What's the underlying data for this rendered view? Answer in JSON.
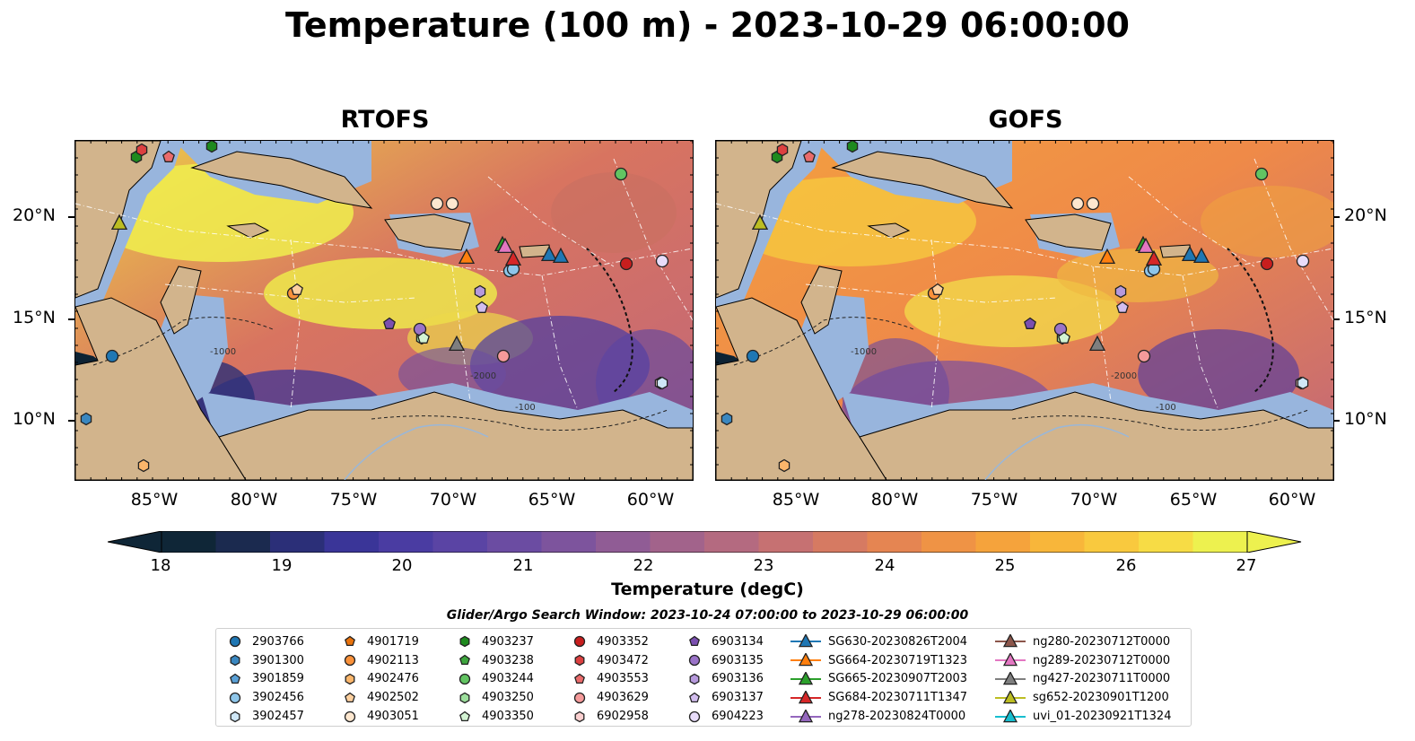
{
  "title": "Temperature (100 m) - 2023-10-29 06:00:00",
  "panels": [
    {
      "title": "RTOFS"
    },
    {
      "title": "GOFS"
    }
  ],
  "lat_labels": [
    "20°N",
    "15°N",
    "10°N"
  ],
  "lon_labels": [
    "85°W",
    "80°W",
    "75°W",
    "70°W",
    "65°W",
    "60°W"
  ],
  "colorbar": {
    "ticks": [
      "18",
      "19",
      "20",
      "21",
      "22",
      "23",
      "24",
      "25",
      "26",
      "27"
    ],
    "label": "Temperature (degC)",
    "colors": [
      "#0f2637",
      "#1b2a4f",
      "#2b2f78",
      "#3a3598",
      "#4a3ca2",
      "#5a44a4",
      "#6b4ca2",
      "#7d549d",
      "#905c95",
      "#a2638b",
      "#b46a80",
      "#c67172",
      "#d67a62",
      "#e58552",
      "#ef9345",
      "#f5a33c",
      "#f8b63a",
      "#f9c93e",
      "#f7dc45",
      "#edf14f"
    ]
  },
  "search_window": "Glider/Argo Search Window: 2023-10-24 07:00:00 to 2023-10-29 06:00:00",
  "legend": [
    [
      {
        "label": "2903766",
        "marker": "circle",
        "color": "#1f77b4"
      },
      {
        "label": "3901300",
        "marker": "hexagon",
        "color": "#3a87c0"
      },
      {
        "label": "3901859",
        "marker": "pentagon",
        "color": "#5aa0d6"
      },
      {
        "label": "3902456",
        "marker": "circle",
        "color": "#8ec6ea"
      },
      {
        "label": "3902457",
        "marker": "hexagon",
        "color": "#cfe7f7"
      }
    ],
    [
      {
        "label": "4901719",
        "marker": "pentagon",
        "color": "#e8720c"
      },
      {
        "label": "4902113",
        "marker": "circle",
        "color": "#f9913a"
      },
      {
        "label": "4902476",
        "marker": "hexagon",
        "color": "#fbb66b"
      },
      {
        "label": "4902502",
        "marker": "pentagon",
        "color": "#fdd09f"
      },
      {
        "label": "4903051",
        "marker": "circle",
        "color": "#fde7cf"
      }
    ],
    [
      {
        "label": "4903237",
        "marker": "hexagon",
        "color": "#1e8a1e"
      },
      {
        "label": "4903238",
        "marker": "pentagon",
        "color": "#3ea63e"
      },
      {
        "label": "4903244",
        "marker": "circle",
        "color": "#62c462"
      },
      {
        "label": "4903250",
        "marker": "hexagon",
        "color": "#9ddf9d"
      },
      {
        "label": "4903350",
        "marker": "pentagon",
        "color": "#d3f3d3"
      }
    ],
    [
      {
        "label": "4903352",
        "marker": "circle",
        "color": "#c81e1e"
      },
      {
        "label": "4903472",
        "marker": "hexagon",
        "color": "#dc4040"
      },
      {
        "label": "4903553",
        "marker": "pentagon",
        "color": "#ea6b6b"
      },
      {
        "label": "4903629",
        "marker": "circle",
        "color": "#f59a9a"
      },
      {
        "label": "6902958",
        "marker": "hexagon",
        "color": "#fbd0d0"
      }
    ],
    [
      {
        "label": "6903134",
        "marker": "pentagon",
        "color": "#7b4fb0"
      },
      {
        "label": "6903135",
        "marker": "circle",
        "color": "#9a73c8"
      },
      {
        "label": "6903136",
        "marker": "hexagon",
        "color": "#b699dc"
      },
      {
        "label": "6903137",
        "marker": "pentagon",
        "color": "#d2bdee"
      },
      {
        "label": "6904223",
        "marker": "circle",
        "color": "#e8dcfa"
      }
    ],
    [
      {
        "label": "SG630-20230826T2004",
        "marker": "triangle",
        "color": "#1f77b4"
      },
      {
        "label": "SG664-20230719T1323",
        "marker": "triangle",
        "color": "#ff7f0e"
      },
      {
        "label": "SG665-20230907T2003",
        "marker": "triangle",
        "color": "#2ca02c"
      },
      {
        "label": "SG684-20230711T1347",
        "marker": "triangle",
        "color": "#d62728"
      },
      {
        "label": "ng278-20230824T0000",
        "marker": "triangle",
        "color": "#9467bd"
      }
    ],
    [
      {
        "label": "ng280-20230712T0000",
        "marker": "triangle",
        "color": "#8c564b"
      },
      {
        "label": "ng289-20230712T0000",
        "marker": "triangle",
        "color": "#e377c2"
      },
      {
        "label": "ng427-20230711T0000",
        "marker": "triangle",
        "color": "#7f7f7f"
      },
      {
        "label": "sg652-20230901T1200",
        "marker": "triangle",
        "color": "#bcbd22"
      },
      {
        "label": "uvi_01-20230921T1324",
        "marker": "triangle",
        "color": "#17becf"
      }
    ]
  ],
  "map_labels": [
    "-1000",
    "-100",
    "-2000"
  ]
}
